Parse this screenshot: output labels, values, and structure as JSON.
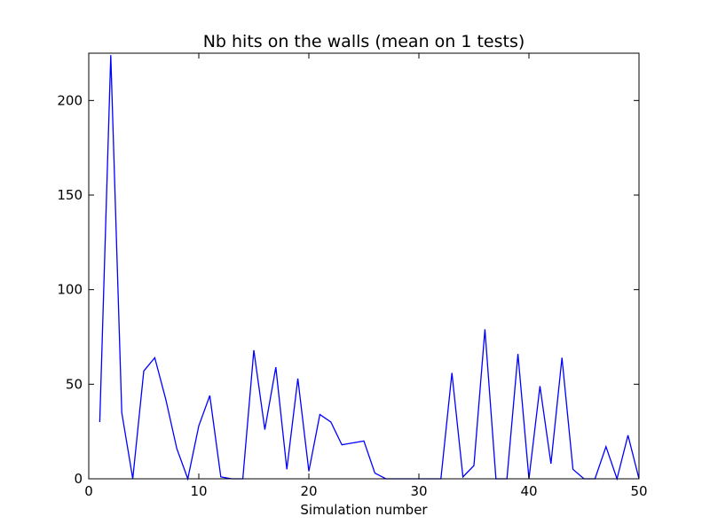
{
  "chart_data": {
    "type": "line",
    "title": "Nb hits on the walls (mean on 1 tests)",
    "xlabel": "Simulation number",
    "ylabel": "",
    "xlim": [
      0,
      50
    ],
    "ylim": [
      0,
      225
    ],
    "xticks": [
      0,
      10,
      20,
      30,
      40,
      50
    ],
    "yticks": [
      0,
      50,
      100,
      150,
      200
    ],
    "grid": false,
    "legend": "none",
    "line_color": "#0000ff",
    "series": [
      {
        "x": [
          1,
          2,
          3,
          4,
          5,
          6,
          7,
          8,
          9,
          10,
          11,
          12,
          13,
          14,
          15,
          16,
          17,
          18,
          19,
          20,
          21,
          22,
          23,
          24,
          25,
          26,
          27,
          28,
          29,
          30,
          31,
          32,
          33,
          34,
          35,
          36,
          37,
          38,
          39,
          40,
          41,
          42,
          43,
          44,
          45,
          46,
          47,
          48,
          49,
          50
        ],
        "values": [
          30,
          224,
          35,
          0,
          57,
          64,
          42,
          16,
          0,
          28,
          44,
          1,
          0,
          0,
          68,
          26,
          59,
          5,
          53,
          4,
          34,
          30,
          18,
          19,
          20,
          3,
          0,
          0,
          0,
          0,
          0,
          0,
          56,
          1,
          7,
          79,
          0,
          0,
          66,
          0,
          49,
          8,
          64,
          5,
          0,
          0,
          17,
          0,
          23,
          0
        ]
      }
    ]
  }
}
